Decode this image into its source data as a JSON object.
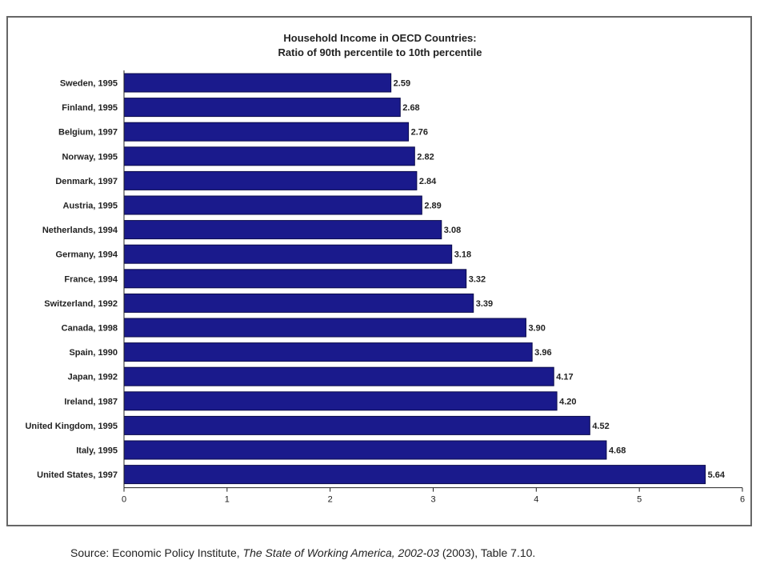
{
  "chart_data": {
    "type": "bar",
    "orientation": "horizontal",
    "title": "Household Income in OECD Countries:",
    "subtitle": "Ratio of 90th percentile to 10th percentile",
    "categories": [
      "Sweden, 1995",
      "Finland, 1995",
      "Belgium, 1997",
      "Norway, 1995",
      "Denmark, 1997",
      "Austria, 1995",
      "Netherlands, 1994",
      "Germany, 1994",
      "France, 1994",
      "Switzerland, 1992",
      "Canada, 1998",
      "Spain, 1990",
      "Japan, 1992",
      "Ireland, 1987",
      "United Kingdom, 1995",
      "Italy, 1995",
      "United States, 1997"
    ],
    "values": [
      2.59,
      2.68,
      2.76,
      2.82,
      2.84,
      2.89,
      3.08,
      3.18,
      3.32,
      3.39,
      3.9,
      3.96,
      4.17,
      4.2,
      4.52,
      4.68,
      5.64
    ],
    "value_labels": [
      "2.59",
      "2.68",
      "2.76",
      "2.82",
      "2.84",
      "2.89",
      "3.08",
      "3.18",
      "3.32",
      "3.39",
      "3.90",
      "3.96",
      "4.17",
      "4.20",
      "4.52",
      "4.68",
      "5.64"
    ],
    "xlim": [
      0,
      6
    ],
    "xticks": [
      "0",
      "1",
      "2",
      "3",
      "4",
      "5",
      "6"
    ],
    "xlabel": "",
    "ylabel": "",
    "grid": false,
    "bar_color": "#1a1a8c"
  },
  "source": {
    "prefix": "Source: Economic Policy Institute, ",
    "title": "The State of Working America, 2002-03",
    "suffix": " (2003), Table 7.10."
  }
}
